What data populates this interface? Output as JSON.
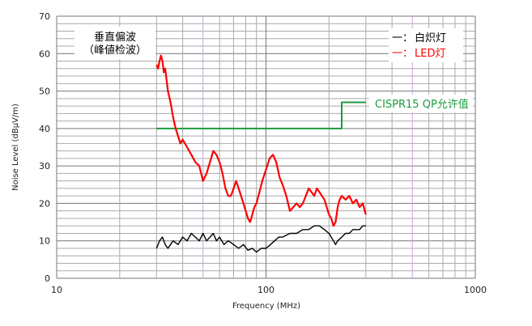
{
  "chart_data": {
    "type": "line",
    "title": "",
    "xlabel": "Frequency (MHz)",
    "ylabel": "Noise Level (dBμV/m)",
    "xscale": "log",
    "xlim": [
      10,
      1000
    ],
    "ylim": [
      0,
      70
    ],
    "x_ticks": [
      "10",
      "100",
      "1000"
    ],
    "y_ticks": [
      "0",
      "10",
      "20",
      "30",
      "40",
      "50",
      "60",
      "70"
    ],
    "grid": true,
    "annotation": {
      "line1": "垂直偏波",
      "line2": "（峰値检波）"
    },
    "legend": {
      "placement": "top-right",
      "entries": [
        {
          "marker": "一：",
          "label": "白炽灯",
          "color": "#000000"
        },
        {
          "marker": "一：",
          "label": "LED灯",
          "color": "#ff0000"
        }
      ]
    },
    "limit_label": "CISPR15 QP允许值",
    "series": [
      {
        "name": "CISPR15 QP允许值",
        "color": "#1a9c3c",
        "x": [
          30,
          230,
          230,
          300
        ],
        "y": [
          40,
          40,
          47,
          47
        ]
      },
      {
        "name": "LED灯",
        "color": "#ff0000",
        "x": [
          30,
          30.5,
          31,
          31.5,
          32,
          32.5,
          33,
          34,
          35,
          36,
          37,
          38,
          39,
          40,
          42,
          44,
          46,
          48,
          50,
          52,
          54,
          56,
          58,
          60,
          62,
          64,
          66,
          68,
          70,
          72,
          75,
          78,
          80,
          82,
          84,
          86,
          88,
          90,
          93,
          96,
          100,
          104,
          108,
          112,
          116,
          120,
          125,
          130,
          135,
          140,
          145,
          150,
          155,
          160,
          165,
          170,
          175,
          180,
          185,
          190,
          195,
          200,
          205,
          210,
          215,
          220,
          225,
          230,
          240,
          250,
          260,
          270,
          280,
          290,
          300
        ],
        "y": [
          57,
          56,
          58,
          59.5,
          58,
          55,
          56,
          50,
          47,
          43,
          40,
          38,
          36,
          37,
          35,
          33,
          31,
          30,
          26,
          28,
          31,
          34,
          33,
          31,
          28,
          24,
          22,
          22,
          24,
          26,
          23,
          20,
          18,
          16,
          15,
          17,
          19,
          20,
          23,
          26,
          29,
          32,
          33,
          31,
          27,
          25,
          22,
          18,
          19,
          20,
          19,
          20,
          22,
          24,
          23,
          22,
          24,
          23,
          22,
          21,
          19,
          17,
          16,
          14,
          15,
          19,
          21,
          22,
          21,
          22,
          20,
          21,
          19,
          20,
          17
        ]
      },
      {
        "name": "白炽灯",
        "color": "#000000",
        "x": [
          30,
          31,
          32,
          33,
          34,
          35,
          36,
          38,
          40,
          42,
          44,
          46,
          48,
          50,
          52,
          54,
          56,
          58,
          60,
          63,
          66,
          70,
          74,
          78,
          82,
          86,
          90,
          95,
          100,
          105,
          110,
          115,
          120,
          130,
          140,
          150,
          160,
          170,
          180,
          190,
          200,
          210,
          215,
          220,
          230,
          240,
          250,
          260,
          270,
          280,
          290,
          300
        ],
        "y": [
          8,
          10,
          11,
          9,
          8,
          9,
          10,
          9,
          11,
          10,
          12,
          11,
          10,
          12,
          10,
          11,
          12,
          10,
          11,
          9,
          10,
          9,
          8,
          9,
          7.5,
          8,
          7,
          8,
          8,
          9,
          10,
          11,
          11,
          12,
          12,
          13,
          13,
          14,
          14,
          13,
          12,
          10,
          9,
          10,
          11,
          12,
          12,
          13,
          13,
          13,
          14,
          14
        ]
      }
    ]
  }
}
